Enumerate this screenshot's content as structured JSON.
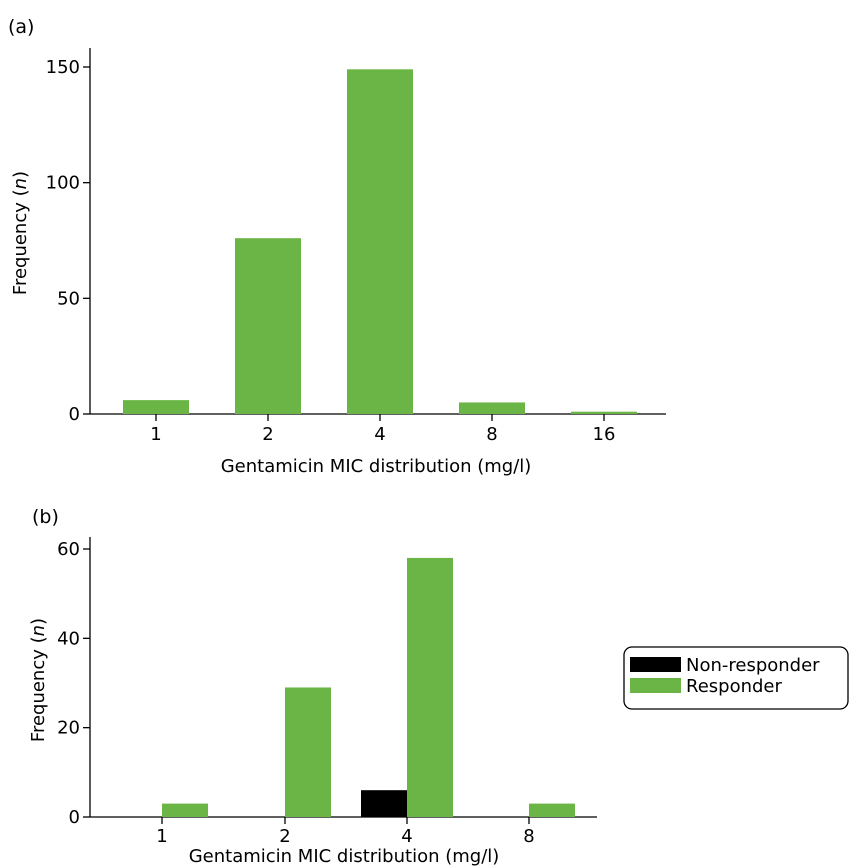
{
  "chart_data": [
    {
      "type": "bar",
      "panel_label": "(a)",
      "categories": [
        "1",
        "2",
        "4",
        "8",
        "16"
      ],
      "series": [
        {
          "color": "#6ab545",
          "values": [
            6,
            76,
            149,
            5,
            1
          ]
        }
      ],
      "xlabel": "Gentamicin MIC distribution (mg/l)",
      "ylabel_main": "Frequency (",
      "ylabel_italic": "n",
      "ylabel_close": ")",
      "ylim": [
        0,
        150
      ],
      "yticks": [
        "0",
        "50",
        "100",
        "150"
      ],
      "grid": false,
      "legend": "none"
    },
    {
      "type": "bar",
      "panel_label": "(b)",
      "categories": [
        "1",
        "2",
        "4",
        "8"
      ],
      "series": [
        {
          "name": "Non-responder",
          "color": "#000000",
          "values": [
            0,
            0,
            6,
            0
          ]
        },
        {
          "name": "Responder",
          "color": "#6ab545",
          "values": [
            3,
            29,
            58,
            3
          ]
        }
      ],
      "xlabel": "Gentamicin MIC distribution (mg/l)",
      "ylabel_main": "Frequency (",
      "ylabel_italic": "n",
      "ylabel_close": ")",
      "ylim": [
        0,
        60
      ],
      "yticks": [
        "0",
        "20",
        "40",
        "60"
      ],
      "grid": false,
      "legend": "right"
    }
  ]
}
